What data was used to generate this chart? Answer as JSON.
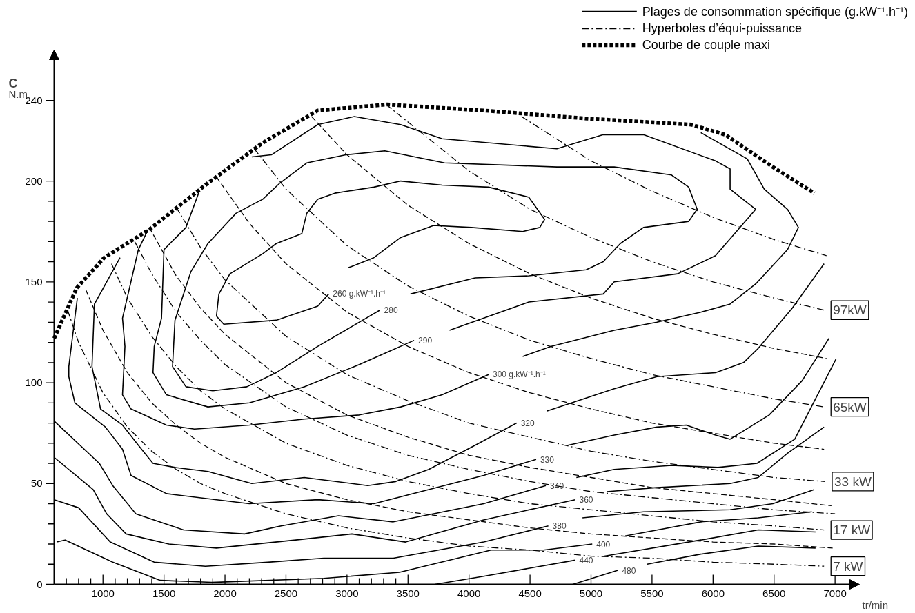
{
  "chart_data": {
    "type": "line",
    "xlabel": "tr/min",
    "ylabel": "C",
    "xlim": [
      600,
      7200
    ],
    "ylim": [
      0,
      265
    ],
    "grid": false,
    "legend": "top right",
    "xticks": [
      {
        "value": 700,
        "label": null
      },
      {
        "value": 800,
        "label": null
      },
      {
        "value": 900,
        "label": null
      },
      1000,
      {
        "value": 1100,
        "label": null
      },
      {
        "value": 1200,
        "label": null
      },
      {
        "value": 1300,
        "label": null
      },
      {
        "value": 1400,
        "label": null
      },
      1500,
      {
        "value": 1600,
        "label": null
      },
      {
        "value": 1700,
        "label": null
      },
      {
        "value": 1800,
        "label": null
      },
      {
        "value": 1900,
        "label": null
      },
      2000,
      {
        "value": 2100,
        "label": null
      },
      {
        "value": 2200,
        "label": null
      },
      {
        "value": 2300,
        "label": null
      },
      {
        "value": 2400,
        "label": null
      },
      2500,
      {
        "value": 2600,
        "label": null
      },
      {
        "value": 2700,
        "label": null
      },
      {
        "value": 2800,
        "label": null
      },
      {
        "value": 2900,
        "label": null
      },
      3000,
      {
        "value": 3100,
        "label": null
      },
      {
        "value": 3200,
        "label": null
      },
      {
        "value": 3300,
        "label": null
      },
      {
        "value": 3400,
        "label": null
      },
      3500,
      4000,
      4500,
      5000,
      5500,
      6000,
      6500,
      7000
    ],
    "yticks": [
      0,
      {
        "value": 10,
        "label": null
      },
      {
        "value": 20,
        "label": null
      },
      {
        "value": 30,
        "label": null
      },
      {
        "value": 40,
        "label": null
      },
      50,
      {
        "value": 60,
        "label": null
      },
      {
        "value": 70,
        "label": null
      },
      {
        "value": 80,
        "label": null
      },
      {
        "value": 90,
        "label": null
      },
      100,
      {
        "value": 110,
        "label": null
      },
      {
        "value": 120,
        "label": null
      },
      {
        "value": 130,
        "label": null
      },
      {
        "value": 140,
        "label": null
      },
      150,
      {
        "value": 160,
        "label": null
      },
      {
        "value": 170,
        "label": null
      },
      {
        "value": 180,
        "label": null
      },
      {
        "value": 190,
        "label": null
      },
      200,
      240
    ],
    "series": [
      {
        "name": "Plages de consommation spécifique (g.kW⁻¹.h⁻¹)",
        "color": "#000000",
        "line_style": "solid",
        "x": [
          2850,
          2760,
          2420,
          1990,
          1930,
          1950,
          2040,
          2310,
          2420,
          2630,
          2670,
          2760,
          2900,
          3220,
          3440,
          3780,
          4160,
          4490,
          4620,
          4580,
          4440,
          4020,
          3710,
          3440,
          3220,
          3010
        ],
        "values": [
          144,
          138,
          131,
          129,
          133,
          144,
          154,
          164,
          169,
          174,
          184,
          191,
          194,
          197,
          200,
          198,
          197,
          192,
          181,
          177,
          175,
          177,
          178,
          172,
          162,
          157
        ]
      },
      {
        "color": "#000000",
        "line_style": "solid",
        "x": [
          3270,
          2760,
          2420,
          2180,
          1900,
          1680,
          1570,
          1590,
          1720,
          1860,
          2090,
          2310,
          2450,
          2670,
          2990,
          3310,
          3800,
          4720,
          5190,
          5660,
          5800,
          5870,
          5800,
          5430,
          5240,
          5100,
          4960,
          4490,
          4050,
          3520
        ],
        "values": [
          136,
          118,
          105,
          98,
          96,
          98,
          108,
          131,
          155,
          169,
          184,
          191,
          199,
          209,
          213,
          215,
          209,
          207,
          207,
          203,
          197,
          186,
          180,
          177,
          169,
          160,
          156,
          153,
          152,
          144
        ]
      },
      {
        "color": "#000000",
        "line_style": "solid",
        "x": [
          2220,
          2380,
          2760,
          3060,
          3440,
          3780,
          4720,
          5100,
          5430,
          6020,
          6140,
          6140,
          6350,
          6020,
          5710,
          5190,
          5100,
          4490,
          3840,
          3700,
          3550,
          3100,
          2650,
          2200,
          1860,
          1520,
          1410,
          1420,
          1480,
          1500,
          1680,
          1790
        ],
        "values": [
          212,
          213,
          228,
          232,
          228,
          221,
          216,
          223,
          223,
          210,
          206,
          196,
          186,
          163,
          154,
          150,
          144,
          140,
          126,
          null,
          121,
          109,
          98,
          90,
          88,
          94,
          105,
          118,
          132,
          166,
          177,
          195
        ]
      },
      {
        "color": "#000000",
        "line_style": "solid",
        "x": [
          5900,
          6280,
          6420,
          6610,
          6700,
          6610,
          6350,
          6140,
          5900,
          5540,
          5190,
          4670,
          4440,
          4300,
          4160,
          3780,
          3440,
          3100,
          2650,
          2200,
          1750,
          1520,
          1230,
          1160,
          1180,
          1160,
          1290,
          1370
        ],
        "values": [
          224,
          211,
          196,
          186,
          177,
          166,
          149,
          139,
          135,
          130,
          126,
          118,
          113,
          null,
          104,
          94,
          88,
          84,
          82,
          79,
          77,
          79,
          87,
          94,
          118,
          132,
          166,
          176
        ]
      },
      {
        "color": "#000000",
        "line_style": "solid",
        "x": [
          1140,
          930,
          910,
          980,
          1160,
          1290,
          1410,
          1590,
          1860,
          2220,
          2650,
          3170,
          3400,
          3670,
          4050,
          4390,
          4520,
          4640,
          5190,
          5540,
          6020,
          6250,
          6370,
          6650,
          6910
        ],
        "values": [
          162,
          139,
          108,
          87,
          79,
          69,
          60,
          58,
          56,
          50,
          53,
          49,
          51,
          57,
          69,
          80,
          null,
          86,
          97,
          103,
          105,
          110,
          117,
          137,
          159
        ]
      },
      {
        "color": "#000000",
        "line_style": "solid",
        "x": [
          790,
          720,
          720,
          770,
          1020,
          1160,
          1230,
          1520,
          2200,
          2760,
          3220,
          4120,
          4550,
          4680,
          4810,
          5190,
          5540,
          5780,
          6020,
          6140,
          6460,
          6730,
          6950
        ],
        "values": [
          142,
          108,
          103,
          90,
          78,
          67,
          54,
          45,
          40,
          42,
          40,
          54,
          62,
          null,
          69,
          74,
          78,
          79,
          74,
          72,
          84,
          101,
          122
        ]
      },
      {
        "color": "#000000",
        "line_style": "solid",
        "x": [
          600,
          970,
          1080,
          1270,
          1660,
          2160,
          2460,
          2930,
          3380,
          4120,
          4630,
          4760,
          4880,
          5190,
          5660,
          6040,
          6360,
          6670,
          7010
        ],
        "values": [
          81,
          60,
          49,
          35,
          27,
          25,
          29,
          34,
          31,
          40,
          49,
          null,
          53,
          57,
          59,
          58,
          60,
          72,
          112
        ]
      },
      {
        "color": "#000000",
        "line_style": "solid",
        "x": [
          600,
          920,
          1030,
          1190,
          1540,
          1930,
          2580,
          3040,
          3480,
          4120,
          4870,
          5000,
          5130,
          5540,
          6140,
          6370,
          6610,
          6910
        ],
        "values": [
          63,
          47,
          35,
          25,
          20,
          18,
          22,
          25,
          21,
          32,
          42,
          null,
          46,
          48,
          50,
          53,
          65,
          78
        ]
      },
      {
        "color": "#000000",
        "line_style": "solid",
        "x": [
          600,
          800,
          1060,
          1420,
          1840,
          2350,
          2810,
          3380,
          4120,
          4650,
          4800,
          4930,
          5430,
          6140,
          6490,
          6830
        ],
        "values": [
          42,
          38,
          21,
          11,
          9,
          11,
          13,
          13,
          21,
          29,
          null,
          33,
          36,
          37,
          40,
          47
        ]
      },
      {
        "color": "#000000",
        "line_style": "solid",
        "x": [
          620,
          690,
          1080,
          1470,
          1890,
          2810,
          3430,
          4180,
          4610,
          5010,
          5150,
          5280,
          5900,
          6370,
          6810
        ],
        "values": [
          21,
          22,
          11,
          2,
          1,
          3,
          6,
          17,
          17,
          20,
          null,
          24,
          31,
          33,
          36
        ]
      },
      {
        "color": "#000000",
        "line_style": "solid",
        "x": [
          3720,
          4120,
          4870,
          4980,
          5110,
          5900,
          6370,
          6840
        ],
        "values": [
          0,
          4,
          12,
          null,
          14,
          22,
          27,
          26
        ]
      },
      {
        "color": "#000000",
        "line_style": "solid",
        "x": [
          4850,
          5220,
          5340,
          5460,
          5900,
          6370,
          6840
        ],
        "values": [
          0,
          7,
          null,
          10,
          15,
          19,
          18
        ]
      },
      {
        "name": "Hyperboles d’équi-puissance",
        "color": "#000000",
        "line_style": "dashdot",
        "x": [
          4430,
          5000,
          5500,
          6000,
          6500,
          6930
        ],
        "values": [
          232,
          210,
          195,
          182,
          171,
          163
        ]
      },
      {
        "color": "#000000",
        "line_style": "dashdot",
        "x": [
          3320,
          4000,
          4500,
          5000,
          5500,
          6000,
          6500,
          6910
        ],
        "values": [
          238,
          205,
          186,
          172,
          160,
          150,
          142,
          136
        ]
      },
      {
        "color": "#000000",
        "line_style": "dashed",
        "x": [
          2710,
          3000,
          3500,
          4000,
          4500,
          5000,
          5500,
          6000,
          6500,
          6930
        ],
        "values": [
          232,
          213,
          188,
          169,
          154,
          142,
          132,
          124,
          117,
          112
        ]
      },
      {
        "color": "#000000",
        "line_style": "dashdot",
        "x": [
          2240,
          2500,
          3000,
          3500,
          4000,
          4500,
          5000,
          5500,
          6000,
          6500,
          6910
        ],
        "values": [
          216,
          196,
          168,
          148,
          133,
          121,
          112,
          104,
          98,
          92,
          88
        ]
      },
      {
        "color": "#000000",
        "line_style": "dashed",
        "x": [
          1930,
          2200,
          2500,
          3000,
          3500,
          4000,
          4500,
          5000,
          5500,
          6000,
          6500,
          6910
        ],
        "values": [
          202,
          179,
          159,
          135,
          118,
          105,
          95,
          87,
          80,
          75,
          70,
          67
        ]
      },
      {
        "color": "#000000",
        "line_style": "dashdot",
        "x": [
          1600,
          1800,
          2000,
          2500,
          3000,
          3500,
          4000,
          4500,
          5000,
          5500,
          6000,
          6500,
          6920
        ],
        "values": [
          187,
          167,
          151,
          123,
          104,
          91,
          80,
          73,
          66,
          61,
          57,
          53,
          51
        ]
      },
      {
        "color": "#000000",
        "line_style": "dashed",
        "x": [
          1380,
          1600,
          1800,
          2000,
          2500,
          3000,
          3500,
          4000,
          4500,
          5000,
          5500,
          6000,
          6500,
          6970
        ],
        "values": [
          177,
          153,
          137,
          124,
          100,
          84,
          73,
          64,
          58,
          53,
          48,
          45,
          42,
          39
        ]
      },
      {
        "color": "#000000",
        "line_style": "dashdot",
        "x": [
          1260,
          1400,
          1600,
          1800,
          2000,
          2500,
          3000,
          3500,
          4000,
          4500,
          5000,
          5500,
          6000,
          6500,
          7000
        ],
        "values": [
          170,
          154,
          135,
          121,
          109,
          88,
          74,
          64,
          57,
          51,
          46,
          43,
          40,
          37,
          35
        ]
      },
      {
        "color": "#000000",
        "line_style": "dashdot",
        "x": [
          1070,
          1200,
          1400,
          1600,
          1800,
          2000,
          2500,
          3000,
          3500,
          4000,
          4500,
          5000,
          5500,
          6000,
          6500,
          6910
        ],
        "values": [
          159,
          142,
          123,
          108,
          96,
          87,
          70,
          59,
          51,
          45,
          40,
          37,
          34,
          31,
          29,
          27
        ]
      },
      {
        "color": "#000000",
        "line_style": "dashed",
        "x": [
          860,
          1000,
          1200,
          1400,
          1600,
          1800,
          2000,
          2500,
          3000,
          3500,
          4000,
          4500,
          5000,
          5500,
          6000,
          6500,
          6980
        ],
        "values": [
          146,
          126,
          105,
          90,
          79,
          70,
          63,
          50,
          42,
          36,
          32,
          28,
          25,
          23,
          21,
          20,
          18
        ]
      },
      {
        "color": "#000000",
        "line_style": "dashdot",
        "x": [
          710,
          800,
          1000,
          1200,
          1400,
          1600,
          1800,
          2000,
          2500,
          3000,
          3500,
          4000,
          4500,
          5000,
          5500,
          6000,
          6500,
          6910
        ],
        "values": [
          136,
          120,
          95,
          78,
          66,
          57,
          50,
          45,
          35,
          28,
          23,
          19,
          17,
          14,
          13,
          11,
          10,
          9
        ]
      },
      {
        "name": "Courbe de couple maxi",
        "color": "#000000",
        "line_style": "dotted",
        "x": [
          600,
          785,
          1010,
          1380,
          1860,
          2310,
          2760,
          3330,
          4120,
          4970,
          5820,
          6100,
          6490,
          6830
        ],
        "values": [
          122,
          147,
          162,
          176,
          199,
          219,
          235,
          238,
          235,
          231,
          228,
          223,
          207,
          194
        ]
      }
    ],
    "annotations": [
      "N.m",
      {
        "text": "260 g.kW⁻¹.h⁻¹",
        "x": 2850,
        "y": 144
      },
      {
        "text": "280",
        "x": 3270,
        "y": 136
      },
      {
        "text": "290",
        "x": 3550,
        "y": 121
      },
      {
        "text": "300 g.kW⁻¹.h⁻¹",
        "x": 4160,
        "y": 104
      },
      {
        "text": "320",
        "x": 4390,
        "y": 80
      },
      {
        "text": "330",
        "x": 4550,
        "y": 62
      },
      {
        "text": "340",
        "x": 4630,
        "y": 49
      },
      {
        "text": "360",
        "x": 4870,
        "y": 42
      },
      {
        "text": "380",
        "x": 4650,
        "y": 29
      },
      {
        "text": "400",
        "x": 5010,
        "y": 20
      },
      {
        "text": "440",
        "x": 4870,
        "y": 12
      },
      {
        "text": "480",
        "x": 5220,
        "y": 7
      },
      {
        "text": "97kW",
        "x": 6910,
        "y": 136
      },
      {
        "text": "65kW",
        "x": 6910,
        "y": 88
      },
      {
        "text": "33 kW",
        "x": 6920,
        "y": 51
      },
      {
        "text": "17 kW",
        "x": 6910,
        "y": 27
      },
      {
        "text": "7 kW",
        "x": 6910,
        "y": 9
      }
    ]
  }
}
